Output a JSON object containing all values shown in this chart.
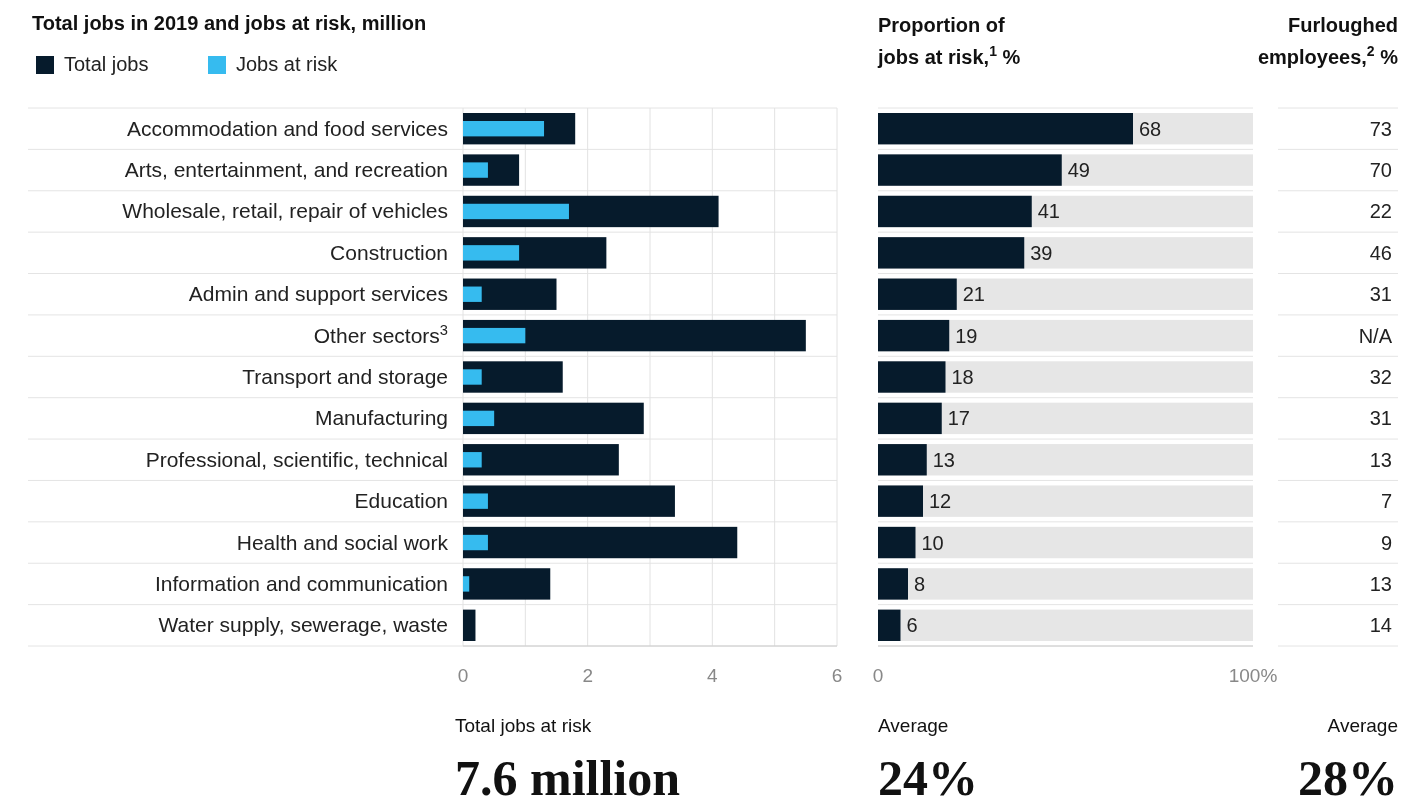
{
  "chart_data": [
    {
      "type": "bar",
      "orientation": "horizontal",
      "title": "Total jobs in 2019 and jobs at risk, million",
      "legend": "top left",
      "grid": "x",
      "categories": [
        "Accommodation and food services",
        "Arts, entertainment, and recreation",
        "Wholesale, retail, repair of vehicles",
        "Construction",
        "Admin and support services",
        "Other sectors$^{3}$",
        "Transport and storage",
        "Manufacturing",
        "Professional, scientific, technical",
        "Education",
        "Health and social work",
        "Information and communication",
        "Water supply, sewerage, waste"
      ],
      "series": [
        {
          "name": "Total jobs",
          "color": "#061b2c",
          "values": [
            1.8,
            0.9,
            4.1,
            2.3,
            1.5,
            5.5,
            1.6,
            2.9,
            2.5,
            3.4,
            4.4,
            1.4,
            0.2
          ]
        },
        {
          "name": "Jobs at risk",
          "color": "#36bbef",
          "values": [
            1.3,
            0.4,
            1.7,
            0.9,
            0.3,
            1.0,
            0.3,
            0.5,
            0.3,
            0.4,
            0.4,
            0.1,
            0
          ]
        }
      ],
      "xlim": [
        0,
        6
      ],
      "xticks": [
        0,
        {
          "value": 1,
          "label": null
        },
        2,
        {
          "value": 3,
          "label": null
        },
        4,
        {
          "value": 5,
          "label": null
        },
        6
      ],
      "annotations": [
        "Total jobs at risk",
        "7.6 million"
      ]
    },
    {
      "type": "bar",
      "orientation": "horizontal",
      "title": "Proportion of jobs at risk,$^{1}$ %",
      "data_labels": true,
      "values": [
        68,
        49,
        41,
        39,
        21,
        19,
        18,
        17,
        13,
        12,
        10,
        8,
        6
      ],
      "color": "#061b2c",
      "xlim": [
        0,
        100
      ],
      "xticks": [
        0,
        {
          "value": 100,
          "label": "100%"
        }
      ],
      "annotations": [
        "Average",
        "24%"
      ]
    },
    {
      "type": "other",
      "title": "Furloughed employees,$^{2}$ %",
      "annotations": [
        "73",
        "70",
        "22",
        "46",
        "31",
        "N/A",
        "32",
        "31",
        "13",
        "7",
        "9",
        "13",
        "14",
        "Average",
        "28%"
      ]
    }
  ]
}
